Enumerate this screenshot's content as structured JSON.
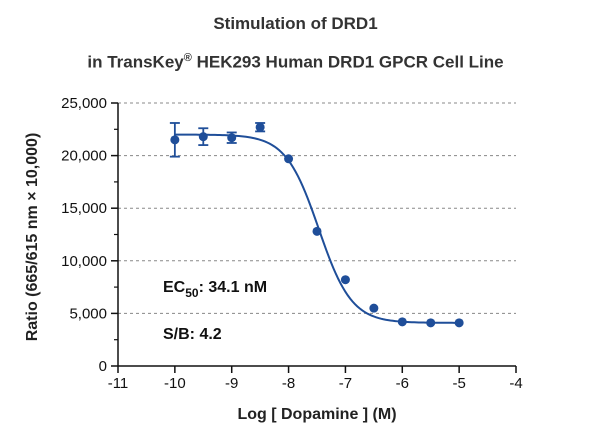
{
  "chart_data": {
    "type": "scatter",
    "title_line1": "Stimulation of  DRD1",
    "title_line2_prefix": "in TransKey",
    "title_line2_sup": "®",
    "title_line2_suffix": " HEK293 Human DRD1 GPCR Cell Line",
    "xlabel": "Log [ Dopamine ]  (M)",
    "ylabel": "Ratio (665/615 nm × 10,000)",
    "xlim": [
      -11,
      -4
    ],
    "ylim": [
      0,
      25000
    ],
    "x_ticks": [
      -11,
      -10,
      -9,
      -8,
      -7,
      -6,
      -5,
      -4
    ],
    "x_tick_labels": [
      "-11",
      "-10",
      "-9",
      "-8",
      "-7",
      "-6",
      "-5",
      "-4"
    ],
    "y_ticks": [
      0,
      5000,
      10000,
      15000,
      20000,
      25000
    ],
    "y_tick_labels": [
      "0",
      "5,000",
      "10,000",
      "15,000",
      "20,000",
      "25,000"
    ],
    "grid": "horizontal dashed",
    "series": [
      {
        "color": "#1f4e99",
        "points": [
          {
            "x": -10.0,
            "y": 21500,
            "err": 1600
          },
          {
            "x": -9.5,
            "y": 21800,
            "err": 800
          },
          {
            "x": -9.0,
            "y": 21700,
            "err": 500
          },
          {
            "x": -8.5,
            "y": 22700,
            "err": 400
          },
          {
            "x": -8.0,
            "y": 19700,
            "err": 0
          },
          {
            "x": -7.5,
            "y": 12800,
            "err": 0
          },
          {
            "x": -7.0,
            "y": 8200,
            "err": 0
          },
          {
            "x": -6.5,
            "y": 5500,
            "err": 0
          },
          {
            "x": -6.0,
            "y": 4200,
            "err": 0
          },
          {
            "x": -5.5,
            "y": 4100,
            "err": 0
          },
          {
            "x": -5.0,
            "y": 4100,
            "err": 0
          }
        ],
        "fit": {
          "top": 22000,
          "bottom": 4100,
          "logEC50": -7.47,
          "hill": -1.5,
          "x_range": [
            -10,
            -5
          ]
        }
      }
    ],
    "annotations": {
      "ec50_prefix": "EC",
      "ec50_sub": "50",
      "ec50_value": ": 34.1 nM",
      "sb": "S/B: 4.2"
    }
  }
}
